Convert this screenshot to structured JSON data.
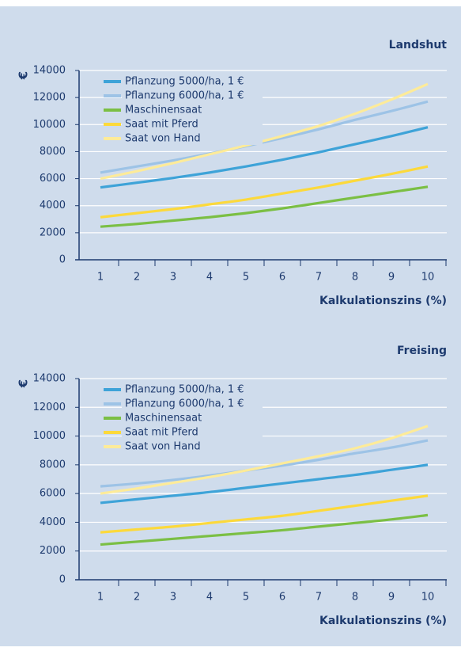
{
  "chart_data": [
    {
      "type": "line",
      "title": "Landshut",
      "y_label": "€",
      "x_label": "Kalkulationszins (%)",
      "categories": [
        "1",
        "2",
        "3",
        "4",
        "5",
        "6",
        "7",
        "8",
        "9",
        "10"
      ],
      "ylim": [
        0,
        14000
      ],
      "yticks": [
        0,
        2000,
        4000,
        6000,
        8000,
        10000,
        12000,
        14000
      ],
      "grid": true,
      "legend": "upper left",
      "series": [
        {
          "name": "Pflanzung 5000/ha, 1 €",
          "color": "#3ea3d8",
          "values": [
            5350,
            5700,
            6050,
            6450,
            6900,
            7400,
            7950,
            8550,
            9150,
            9800
          ]
        },
        {
          "name": "Pflanzung 6000/ha, 1 €",
          "color": "#9dc3e6",
          "values": [
            6450,
            6900,
            7350,
            7850,
            8400,
            9000,
            9650,
            10350,
            11000,
            11700
          ]
        },
        {
          "name": "Maschinensaat",
          "color": "#7bbf44",
          "values": [
            2450,
            2650,
            2900,
            3150,
            3450,
            3800,
            4200,
            4600,
            5000,
            5400
          ]
        },
        {
          "name": "Saat mit Pferd",
          "color": "#fcd93b",
          "values": [
            3150,
            3450,
            3750,
            4100,
            4450,
            4900,
            5350,
            5850,
            6350,
            6900
          ]
        },
        {
          "name": "Saat von Hand",
          "color": "#fdeb99",
          "values": [
            6000,
            6550,
            7150,
            7800,
            8450,
            9150,
            9900,
            10800,
            11850,
            13000
          ]
        }
      ]
    },
    {
      "type": "line",
      "title": "Freising",
      "y_label": "€",
      "x_label": "Kalkulationszins (%)",
      "categories": [
        "1",
        "2",
        "3",
        "4",
        "5",
        "6",
        "7",
        "8",
        "9",
        "10"
      ],
      "ylim": [
        0,
        14000
      ],
      "yticks": [
        0,
        2000,
        4000,
        6000,
        8000,
        10000,
        12000,
        14000
      ],
      "grid": true,
      "legend": "upper left",
      "series": [
        {
          "name": "Pflanzung 5000/ha, 1 €",
          "color": "#3ea3d8",
          "values": [
            5350,
            5600,
            5850,
            6100,
            6400,
            6700,
            7000,
            7300,
            7650,
            8000
          ]
        },
        {
          "name": "Pflanzung 6000/ha, 1 €",
          "color": "#9dc3e6",
          "values": [
            6500,
            6700,
            6950,
            7250,
            7600,
            7950,
            8350,
            8800,
            9200,
            9700
          ]
        },
        {
          "name": "Maschinensaat",
          "color": "#7bbf44",
          "values": [
            2450,
            2650,
            2850,
            3050,
            3250,
            3450,
            3700,
            3950,
            4200,
            4500
          ]
        },
        {
          "name": "Saat mit Pferd",
          "color": "#fcd93b",
          "values": [
            3300,
            3500,
            3700,
            3950,
            4200,
            4450,
            4800,
            5150,
            5500,
            5850
          ]
        },
        {
          "name": "Saat von Hand",
          "color": "#fdeb99",
          "values": [
            6000,
            6350,
            6750,
            7150,
            7600,
            8100,
            8600,
            9150,
            9850,
            10700
          ]
        }
      ]
    }
  ]
}
